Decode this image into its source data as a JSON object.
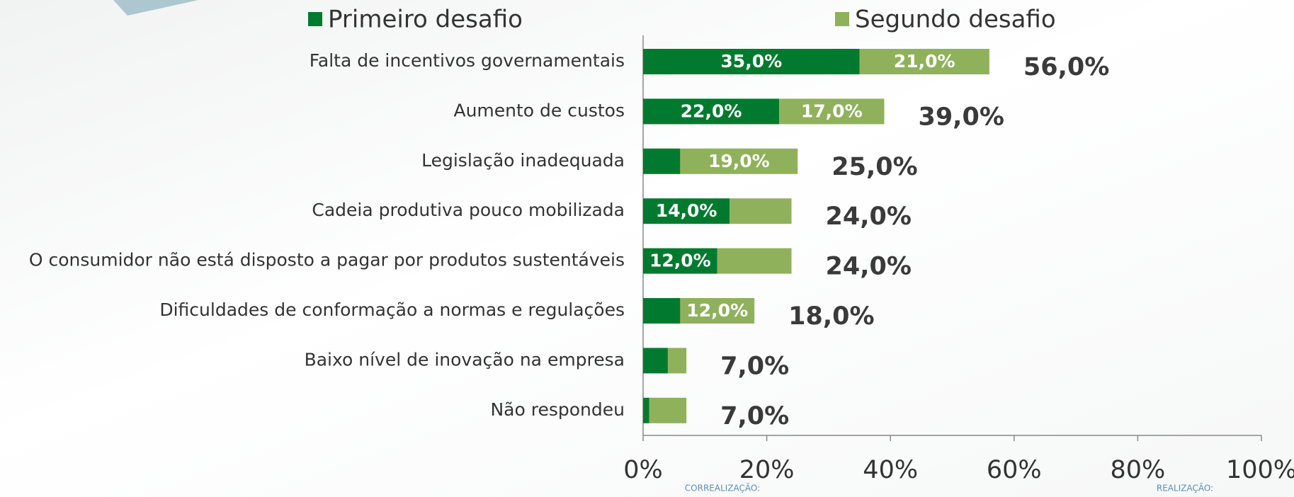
{
  "chart_data": {
    "type": "stacked_bar_horizontal",
    "categories": [
      "Falta de incentivos governamentais",
      "Aumento de custos",
      "Legislação inadequada",
      "Cadeia produtiva pouco mobilizada",
      "O consumidor não está disposto a pagar por produtos sustentáveis",
      "Dificuldades de conformação a normas e regulações",
      "Baixo nível de inovação na empresa",
      "Não respondeu"
    ],
    "series": [
      {
        "name": "Primeiro desafio",
        "color": "#017a2f",
        "values": [
          35,
          22,
          6,
          14,
          12,
          6,
          4,
          1
        ],
        "value_labels": [
          "35,0%",
          "22,0%",
          null,
          "14,0%",
          "12,0%",
          null,
          null,
          null
        ]
      },
      {
        "name": "Segundo desafio",
        "color": "#8fb15c",
        "values": [
          21,
          17,
          19,
          10,
          12,
          12,
          3,
          6
        ],
        "value_labels": [
          "21,0%",
          "17,0%",
          "19,0%",
          null,
          null,
          "12,0%",
          null,
          null
        ]
      }
    ],
    "totals": {
      "values": [
        56,
        39,
        25,
        24,
        24,
        18,
        7,
        7
      ],
      "value_labels": [
        "56,0%",
        "39,0%",
        "25,0%",
        "24,0%",
        "24,0%",
        "18,0%",
        "7,0%",
        "7,0%"
      ]
    },
    "xlim": [
      0,
      100
    ],
    "xticks": [
      {
        "value": 0,
        "label": "0%"
      },
      {
        "value": 20,
        "label": "20%"
      },
      {
        "value": 40,
        "label": "40%"
      },
      {
        "value": 60,
        "label": "60%"
      },
      {
        "value": 80,
        "label": "80%"
      },
      {
        "value": 100,
        "label": "100%"
      }
    ],
    "footer": [
      "CORREALIZAÇÃO:",
      "REALIZAÇÃO:"
    ]
  }
}
